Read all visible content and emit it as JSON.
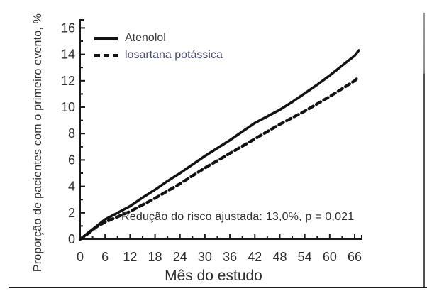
{
  "colors": {
    "background": "#ffffff",
    "curve": "#121212",
    "axis": "#1a1a1a",
    "tick_label": "#2d2d2d",
    "legend_atenolol_text": "#3a3a3a",
    "legend_losartana_text": "#474b70",
    "border_right": "#8d8d8d",
    "border_bottom": "#1d1d1d"
  },
  "chart_data": {
    "type": "line",
    "title": "",
    "xlabel": "Mês do estudo",
    "ylabel": "Proporção de pacientes com o primeiro evento, %",
    "xlim": [
      0,
      68
    ],
    "ylim": [
      0,
      16
    ],
    "x_ticks": [
      0,
      6,
      12,
      18,
      24,
      30,
      36,
      42,
      48,
      54,
      60,
      66
    ],
    "x_minor_step": 3,
    "y_ticks": [
      0,
      2,
      4,
      6,
      8,
      10,
      12,
      14,
      16
    ],
    "y_minor_step": 1,
    "grid": false,
    "legend_position": "top-left",
    "annotation": "Redução do risco ajustada: 13,0%, p = 0,021",
    "x": [
      0,
      2,
      4,
      6,
      9,
      12,
      15,
      18,
      21,
      24,
      27,
      30,
      33,
      36,
      39,
      42,
      45,
      48,
      51,
      54,
      57,
      60,
      63,
      66,
      67
    ],
    "series": [
      {
        "name": "Atenolol",
        "line_style": "solid",
        "color": "#121212",
        "values": [
          0,
          0.5,
          1.0,
          1.5,
          2.0,
          2.5,
          3.15,
          3.75,
          4.4,
          5.0,
          5.65,
          6.3,
          6.9,
          7.5,
          8.15,
          8.8,
          9.3,
          9.8,
          10.4,
          11.05,
          11.7,
          12.4,
          13.15,
          13.9,
          14.3
        ]
      },
      {
        "name": "losartana potássica",
        "line_style": "dashed",
        "color": "#121212",
        "values": [
          0,
          0.45,
          0.95,
          1.3,
          1.7,
          2.1,
          2.6,
          3.1,
          3.65,
          4.2,
          4.8,
          5.4,
          5.95,
          6.5,
          7.05,
          7.6,
          8.15,
          8.7,
          9.2,
          9.7,
          10.25,
          10.8,
          11.4,
          12.0,
          12.3
        ]
      }
    ]
  }
}
